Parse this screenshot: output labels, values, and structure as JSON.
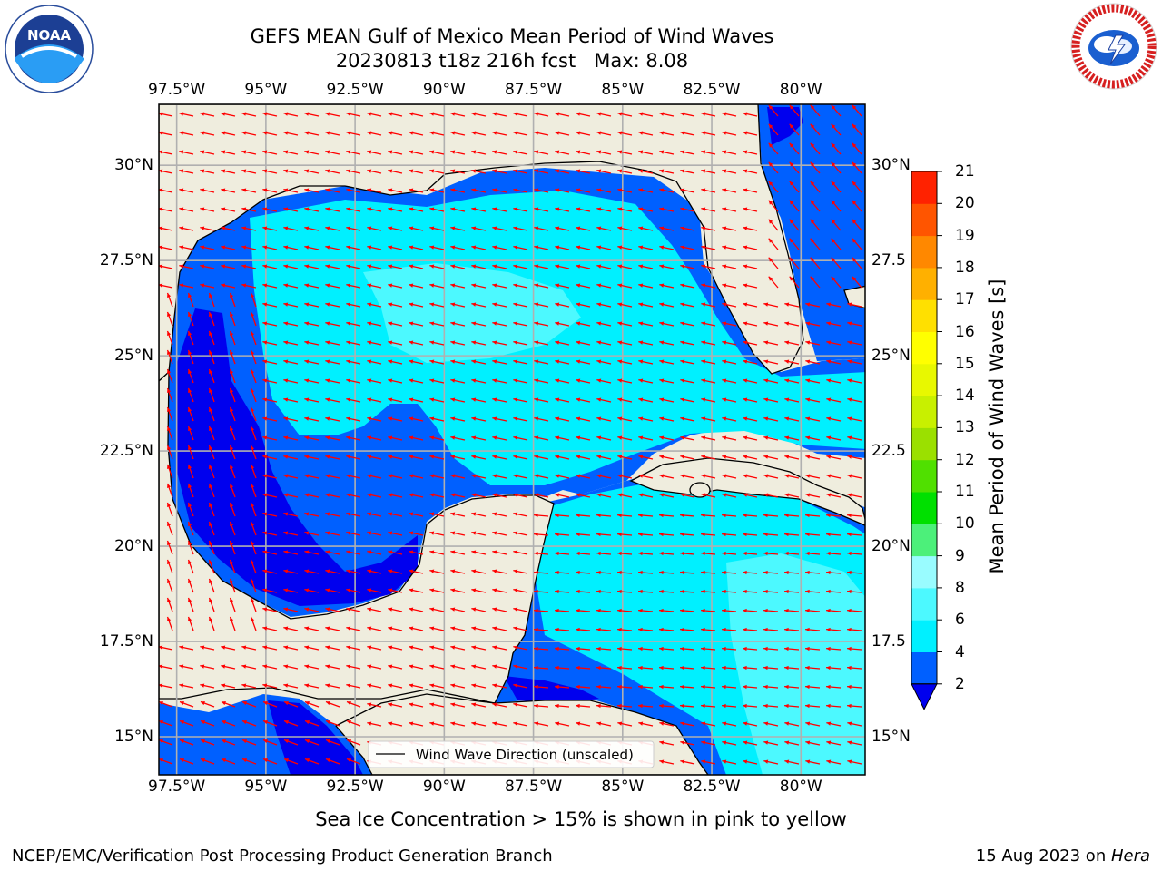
{
  "title": {
    "line1": "GEFS MEAN Gulf of Mexico Mean Period of Wind Waves",
    "line2": "20230813 t18z 216h fcst   Max: 8.08"
  },
  "logos": {
    "left": {
      "icon": "noaa-logo",
      "text": "NOAA",
      "ring_text": "NATIONAL OCEANIC AND ATMOSPHERIC ADMINISTRATION · U.S. DEPARTMENT OF COMMERCE"
    },
    "right": {
      "icon": "nws-logo",
      "ring_text": "NATIONAL WEATHER SERVICE"
    }
  },
  "map": {
    "lon_ticks": [
      "97.5°W",
      "95°W",
      "92.5°W",
      "90°W",
      "87.5°W",
      "85°W",
      "82.5°W",
      "80°W"
    ],
    "lat_ticks_left": [
      "30°N",
      "27.5°N",
      "25°N",
      "22.5°N",
      "20°N",
      "17.5°N",
      "15°N"
    ],
    "lat_ticks_right": [
      "30°N",
      "27.5",
      "25°N",
      "22.5",
      "20°N",
      "17.5",
      "15°N"
    ],
    "lon_range": [
      -98,
      -78.2
    ],
    "lat_range": [
      14,
      31.6
    ],
    "legend_label": "Wind Wave Direction (unscaled)",
    "colors": {
      "land": "#efedde",
      "ocean_low": "#0060ff",
      "ocean_mid": "#00f0ff",
      "ocean_light": "#4cf9ff",
      "ocean_deep": "#0000ee",
      "arrows": "#ff0000",
      "grid": "#b0b0b0"
    }
  },
  "colorbar": {
    "label": "Mean Period of Wind Waves [s]",
    "ticks": [
      "2",
      "4",
      "6",
      "8",
      "9",
      "10",
      "11",
      "12",
      "13",
      "14",
      "15",
      "16",
      "17",
      "18",
      "19",
      "20",
      "21"
    ],
    "colors": [
      "#0060ff",
      "#00f0ff",
      "#4cf9ff",
      "#99fcff",
      "#4cf07a",
      "#00e000",
      "#50e000",
      "#9be000",
      "#c8f000",
      "#e8f800",
      "#ffff00",
      "#ffe000",
      "#ffb000",
      "#ff8800",
      "#ff5500",
      "#ff2200"
    ],
    "extend_color": "#0000ee"
  },
  "caption": "Sea Ice Concentration > 15% is shown in pink to yellow",
  "footer": {
    "left": "NCEP/EMC/Verification Post Processing Product Generation Branch",
    "date": "15 Aug 2023 on ",
    "machine": "Hera"
  }
}
